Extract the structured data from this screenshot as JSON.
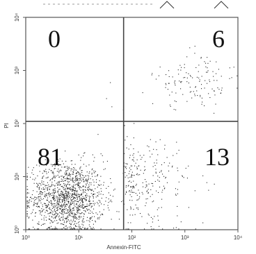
{
  "chart_data": {
    "type": "scatter",
    "title": "",
    "xlabel": "Annexin-FITC",
    "ylabel": "PI",
    "x_scale": "log",
    "y_scale": "log",
    "xlim": [
      1,
      10000
    ],
    "ylim": [
      1,
      10000
    ],
    "x_ticks": [
      {
        "value": 1,
        "label": "10⁰"
      },
      {
        "value": 10,
        "label": "10¹"
      },
      {
        "value": 100,
        "label": "10²"
      },
      {
        "value": 1000,
        "label": "10³"
      },
      {
        "value": 10000,
        "label": "10⁴"
      }
    ],
    "y_ticks": [
      {
        "value": 1,
        "label": "10⁰"
      },
      {
        "value": 10,
        "label": "10¹"
      },
      {
        "value": 100,
        "label": "10²"
      },
      {
        "value": 1000,
        "label": "10³"
      },
      {
        "value": 10000,
        "label": "10⁴"
      }
    ],
    "gates": {
      "x": 70,
      "y": 110
    },
    "quadrants": [
      {
        "position": "upper-left",
        "label": "0"
      },
      {
        "position": "upper-right",
        "label": "6"
      },
      {
        "position": "lower-left",
        "label": "81"
      },
      {
        "position": "lower-right",
        "label": "13"
      }
    ],
    "density_clusters": [
      {
        "quadrant": "lower-left",
        "center": [
          6,
          4
        ],
        "spread_decades": [
          0.35,
          0.35
        ],
        "approx_points": 1400
      },
      {
        "quadrant": "lower-right",
        "center": [
          180,
          8
        ],
        "spread_decades": [
          0.45,
          0.45
        ],
        "approx_points": 260
      },
      {
        "quadrant": "upper-right",
        "center": [
          1500,
          600
        ],
        "spread_decades": [
          0.35,
          0.25
        ],
        "approx_points": 130
      },
      {
        "quadrant": "upper-left",
        "center": [
          30,
          400
        ],
        "spread_decades": [
          0.25,
          0.2
        ],
        "approx_points": 4
      }
    ],
    "grid": false,
    "legend": "none"
  },
  "colors": {
    "dots": "#222222",
    "frame": "#555555",
    "background": "#ffffff"
  }
}
